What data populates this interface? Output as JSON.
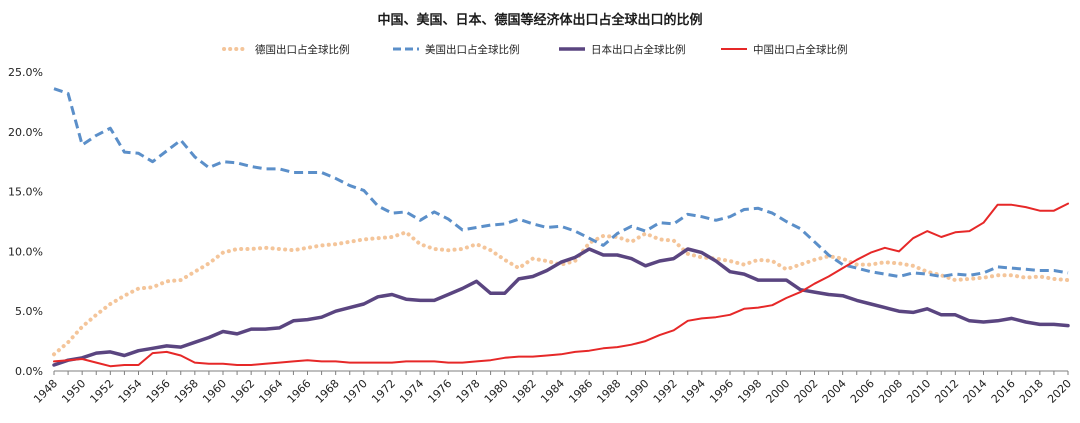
{
  "chart_data": {
    "type": "line",
    "title": "中国、美国、日本、德国等经济体出口占全球出口的比例",
    "xlabel": "",
    "ylabel": "",
    "ylim": [
      0,
      25
    ],
    "yticks": [
      "0.0%",
      "5.0%",
      "10.0%",
      "15.0%",
      "20.0%",
      "25.0%"
    ],
    "grid": false,
    "legend_position": "top",
    "x": [
      1948,
      1949,
      1950,
      1951,
      1952,
      1953,
      1954,
      1955,
      1956,
      1957,
      1958,
      1959,
      1960,
      1961,
      1962,
      1963,
      1964,
      1965,
      1966,
      1967,
      1968,
      1969,
      1970,
      1971,
      1972,
      1973,
      1974,
      1975,
      1976,
      1977,
      1978,
      1979,
      1980,
      1981,
      1982,
      1983,
      1984,
      1985,
      1986,
      1987,
      1988,
      1989,
      1990,
      1991,
      1992,
      1993,
      1994,
      1995,
      1996,
      1997,
      1998,
      1999,
      2000,
      2001,
      2002,
      2003,
      2004,
      2005,
      2006,
      2007,
      2008,
      2009,
      2010,
      2011,
      2012,
      2013,
      2014,
      2015,
      2016,
      2017,
      2018,
      2019,
      2020
    ],
    "xticks": [
      "1948",
      "1950",
      "1952",
      "1954",
      "1956",
      "1958",
      "1960",
      "1962",
      "1964",
      "1966",
      "1968",
      "1970",
      "1972",
      "1974",
      "1976",
      "1978",
      "1980",
      "1982",
      "1984",
      "1986",
      "1988",
      "1990",
      "1992",
      "1994",
      "1996",
      "1998",
      "2000",
      "2002",
      "2004",
      "2006",
      "2008",
      "2010",
      "2012",
      "2014",
      "2016",
      "2018",
      "2020"
    ],
    "series": [
      {
        "name": "德国出口占全球比例",
        "color": "#f4c59a",
        "style": "dotted",
        "values": [
          1.4,
          2.4,
          3.7,
          4.7,
          5.6,
          6.3,
          6.9,
          7.0,
          7.5,
          7.6,
          8.3,
          9.0,
          9.9,
          10.2,
          10.2,
          10.3,
          10.2,
          10.1,
          10.3,
          10.5,
          10.6,
          10.8,
          11.0,
          11.1,
          11.2,
          11.6,
          10.6,
          10.2,
          10.1,
          10.2,
          10.6,
          10.1,
          9.3,
          8.6,
          9.4,
          9.2,
          8.9,
          9.2,
          10.7,
          11.3,
          11.2,
          10.8,
          11.5,
          11.0,
          10.9,
          9.8,
          9.5,
          9.4,
          9.2,
          8.9,
          9.3,
          9.2,
          8.5,
          8.9,
          9.3,
          9.6,
          9.4,
          8.9,
          8.9,
          9.1,
          9.0,
          8.8,
          8.3,
          8.0,
          7.6,
          7.7,
          7.8,
          8.0,
          8.0,
          7.8,
          7.9,
          7.7,
          7.6
        ]
      },
      {
        "name": "美国出口占全球比例",
        "color": "#5b8fc9",
        "style": "dashed",
        "values": [
          23.6,
          23.2,
          18.9,
          19.7,
          20.3,
          18.3,
          18.2,
          17.5,
          18.4,
          19.3,
          17.9,
          17.0,
          17.5,
          17.4,
          17.1,
          16.9,
          16.9,
          16.6,
          16.6,
          16.6,
          16.1,
          15.5,
          15.1,
          13.8,
          13.2,
          13.3,
          12.6,
          13.3,
          12.7,
          11.8,
          12.0,
          12.2,
          12.3,
          12.7,
          12.3,
          12.0,
          12.1,
          11.7,
          11.1,
          10.5,
          11.5,
          12.1,
          11.7,
          12.4,
          12.3,
          13.1,
          12.9,
          12.6,
          12.9,
          13.5,
          13.6,
          13.2,
          12.5,
          11.9,
          10.8,
          9.7,
          8.9,
          8.6,
          8.3,
          8.1,
          7.9,
          8.2,
          8.1,
          7.9,
          8.1,
          8.0,
          8.2,
          8.7,
          8.6,
          8.5,
          8.4,
          8.4,
          8.2
        ]
      },
      {
        "name": "日本出口占全球比例",
        "color": "#5a4580",
        "style": "solid-thick",
        "values": [
          0.5,
          0.9,
          1.1,
          1.5,
          1.6,
          1.3,
          1.7,
          1.9,
          2.1,
          2.0,
          2.4,
          2.8,
          3.3,
          3.1,
          3.5,
          3.5,
          3.6,
          4.2,
          4.3,
          4.5,
          5.0,
          5.3,
          5.6,
          6.2,
          6.4,
          6.0,
          5.9,
          5.9,
          6.4,
          6.9,
          7.5,
          6.5,
          6.5,
          7.7,
          7.9,
          8.4,
          9.1,
          9.5,
          10.2,
          9.7,
          9.7,
          9.4,
          8.8,
          9.2,
          9.4,
          10.2,
          9.9,
          9.2,
          8.3,
          8.1,
          7.6,
          7.6,
          7.6,
          6.8,
          6.6,
          6.4,
          6.3,
          5.9,
          5.6,
          5.3,
          5.0,
          4.9,
          5.2,
          4.7,
          4.7,
          4.2,
          4.1,
          4.2,
          4.4,
          4.1,
          3.9,
          3.9,
          3.8
        ]
      },
      {
        "name": "中国出口占全球比例",
        "color": "#e62828",
        "style": "solid",
        "values": [
          0.8,
          0.9,
          1.0,
          0.7,
          0.4,
          0.5,
          0.5,
          1.5,
          1.6,
          1.3,
          0.7,
          0.6,
          0.6,
          0.5,
          0.5,
          0.6,
          0.7,
          0.8,
          0.9,
          0.8,
          0.8,
          0.7,
          0.7,
          0.7,
          0.7,
          0.8,
          0.8,
          0.8,
          0.7,
          0.7,
          0.8,
          0.9,
          1.1,
          1.2,
          1.2,
          1.3,
          1.4,
          1.6,
          1.7,
          1.9,
          2.0,
          2.2,
          2.5,
          3.0,
          3.4,
          4.2,
          4.4,
          4.5,
          4.7,
          5.2,
          5.3,
          5.5,
          6.1,
          6.6,
          7.3,
          7.9,
          8.6,
          9.3,
          9.9,
          10.3,
          10.0,
          11.1,
          11.7,
          11.2,
          11.6,
          11.7,
          12.4,
          13.9,
          13.9,
          13.7,
          13.4,
          13.4,
          14.0
        ]
      }
    ]
  },
  "legend": [
    {
      "label": "德国出口占全球比例",
      "color": "#f4c59a",
      "style": "dotted"
    },
    {
      "label": "美国出口占全球比例",
      "color": "#5b8fc9",
      "style": "dashed"
    },
    {
      "label": "日本出口占全球比例",
      "color": "#5a4580",
      "style": "solid-thick"
    },
    {
      "label": "中国出口占全球比例",
      "color": "#e62828",
      "style": "solid"
    }
  ]
}
